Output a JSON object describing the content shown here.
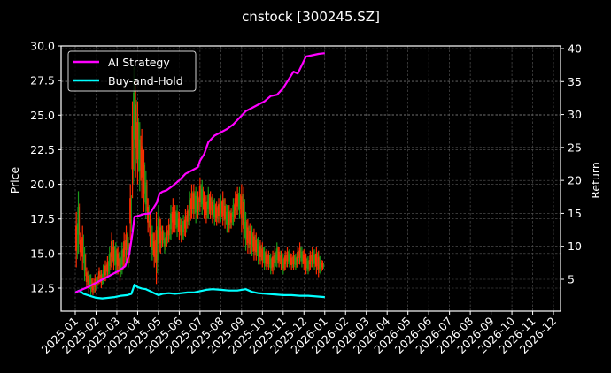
{
  "chart_data": {
    "type": "line",
    "title": "cnstock [300245.SZ]",
    "xlabel": "",
    "ylabel": "Price",
    "y2label": "Return",
    "ylim": [
      10.9,
      30.0
    ],
    "y2lim": [
      1.5,
      40.4
    ],
    "yticks": [
      "12.5",
      "15.0",
      "17.5",
      "20.0",
      "22.5",
      "25.0",
      "27.5",
      "30.0"
    ],
    "y2ticks": [
      "5",
      "10",
      "15",
      "20",
      "25",
      "30",
      "35",
      "40"
    ],
    "xticks": [
      "2025-01",
      "2025-02",
      "2025-03",
      "2025-04",
      "2025-05",
      "2025-06",
      "2025-07",
      "2025-08",
      "2025-09",
      "2025-10",
      "2025-11",
      "2025-12",
      "2026-01",
      "2026-02",
      "2026-03",
      "2026-04",
      "2026-05",
      "2026-06",
      "2026-07",
      "2026-08",
      "2026-09",
      "2026-10",
      "2026-11",
      "2026-12"
    ],
    "grid": true,
    "legend_position": "upper left",
    "legend": [
      "AI Strategy",
      "Buy-and-Hold"
    ],
    "colors": {
      "ai_strategy": "#ff00ff",
      "buy_and_hold": "#00ffff",
      "candle_up": "#ff2a00",
      "candle_down": "#1a9a1a"
    },
    "series": [
      {
        "name": "AI Strategy",
        "axis": "right",
        "x_month": [
          0.0,
          0.3,
          0.6,
          0.9,
          1.2,
          1.5,
          1.8,
          2.1,
          2.4,
          2.6,
          2.75,
          2.85,
          3.0,
          3.3,
          3.6,
          3.9,
          4.05,
          4.2,
          4.4,
          4.7,
          5.0,
          5.3,
          5.6,
          5.9,
          6.0,
          6.2,
          6.4,
          6.7,
          7.0,
          7.3,
          7.6,
          7.9,
          8.2,
          8.5,
          8.8,
          9.1,
          9.4,
          9.7,
          10.0,
          10.3,
          10.5,
          10.7,
          10.9,
          11.1,
          11.4,
          11.7,
          12.0
        ],
        "values": [
          3.0,
          3.4,
          3.8,
          4.3,
          4.8,
          5.3,
          5.8,
          6.3,
          7.0,
          8.8,
          12.0,
          14.5,
          14.6,
          14.9,
          15.0,
          16.5,
          18.0,
          18.3,
          18.5,
          19.2,
          20.0,
          21.0,
          21.5,
          22.0,
          23.0,
          24.0,
          25.8,
          26.8,
          27.3,
          27.8,
          28.5,
          29.5,
          30.5,
          31.0,
          31.5,
          32.0,
          32.8,
          33.0,
          34.0,
          35.5,
          36.5,
          36.2,
          37.5,
          38.8,
          39.0,
          39.2,
          39.3
        ]
      },
      {
        "name": "Buy-and-Hold",
        "axis": "right",
        "x_month": [
          0.0,
          0.2,
          0.4,
          0.6,
          0.8,
          1.0,
          1.3,
          1.6,
          1.9,
          2.2,
          2.5,
          2.7,
          2.85,
          3.0,
          3.2,
          3.4,
          3.6,
          3.8,
          4.0,
          4.2,
          4.5,
          4.8,
          5.1,
          5.4,
          5.7,
          6.0,
          6.3,
          6.6,
          7.0,
          7.4,
          7.8,
          8.2,
          8.5,
          8.8,
          9.2,
          9.6,
          10.0,
          10.4,
          10.8,
          11.2,
          11.6,
          12.0
        ],
        "values": [
          3.0,
          3.3,
          2.8,
          2.6,
          2.4,
          2.2,
          2.1,
          2.2,
          2.3,
          2.5,
          2.6,
          2.8,
          4.2,
          3.8,
          3.6,
          3.5,
          3.2,
          2.9,
          2.6,
          2.8,
          2.9,
          2.8,
          2.9,
          3.0,
          3.0,
          3.2,
          3.4,
          3.5,
          3.4,
          3.3,
          3.3,
          3.5,
          3.1,
          2.9,
          2.8,
          2.7,
          2.6,
          2.6,
          2.5,
          2.5,
          2.4,
          2.3
        ]
      },
      {
        "name": "Price (candles)",
        "axis": "left",
        "x_month": [
          0.05,
          0.15,
          0.25,
          0.35,
          0.45,
          0.55,
          0.65,
          0.75,
          0.85,
          0.95,
          1.05,
          1.15,
          1.25,
          1.35,
          1.45,
          1.55,
          1.65,
          1.75,
          1.85,
          1.95,
          2.05,
          2.15,
          2.25,
          2.35,
          2.45,
          2.55,
          2.65,
          2.75,
          2.82,
          2.9,
          3.0,
          3.1,
          3.2,
          3.3,
          3.4,
          3.5,
          3.6,
          3.7,
          3.8,
          3.9,
          4.0,
          4.1,
          4.2,
          4.3,
          4.4,
          4.5,
          4.6,
          4.7,
          4.8,
          4.9,
          5.0,
          5.1,
          5.2,
          5.3,
          5.4,
          5.5,
          5.6,
          5.7,
          5.8,
          5.9,
          6.0,
          6.1,
          6.2,
          6.3,
          6.4,
          6.5,
          6.6,
          6.7,
          6.8,
          6.9,
          7.0,
          7.1,
          7.2,
          7.3,
          7.4,
          7.5,
          7.6,
          7.7,
          7.8,
          7.9,
          8.0,
          8.1,
          8.2,
          8.3,
          8.4,
          8.5,
          8.6,
          8.7,
          8.8,
          8.9,
          9.0,
          9.1,
          9.2,
          9.3,
          9.4,
          9.5,
          9.6,
          9.7,
          9.8,
          9.9,
          10.0,
          10.1,
          10.2,
          10.3,
          10.4,
          10.5,
          10.6,
          10.7,
          10.8,
          10.9,
          11.0,
          11.1,
          11.2,
          11.3,
          11.4,
          11.5,
          11.6,
          11.7,
          11.8,
          11.9
        ],
        "high": [
          18.0,
          19.5,
          16.5,
          17.0,
          15.5,
          14.0,
          13.8,
          13.5,
          13.2,
          13.5,
          13.6,
          14.0,
          13.8,
          14.2,
          14.5,
          14.8,
          15.5,
          16.5,
          16.0,
          15.8,
          15.5,
          15.2,
          15.8,
          16.5,
          17.0,
          16.2,
          20.0,
          26.0,
          28.5,
          27.5,
          26.0,
          24.5,
          24.0,
          22.5,
          21.0,
          19.0,
          18.0,
          17.0,
          16.5,
          18.0,
          18.5,
          17.5,
          17.0,
          16.5,
          17.0,
          17.5,
          18.5,
          19.0,
          18.5,
          18.5,
          18.0,
          17.5,
          17.8,
          18.2,
          18.5,
          19.5,
          20.0,
          20.0,
          19.8,
          19.5,
          20.5,
          20.3,
          19.5,
          19.2,
          19.8,
          19.5,
          19.3,
          19.0,
          18.8,
          19.0,
          19.2,
          19.5,
          19.0,
          18.5,
          18.5,
          18.3,
          19.0,
          19.5,
          19.8,
          19.8,
          20.0,
          19.8,
          18.0,
          17.5,
          17.2,
          17.0,
          16.8,
          16.5,
          16.2,
          16.0,
          15.8,
          15.5,
          15.3,
          15.2,
          15.0,
          15.2,
          15.5,
          15.8,
          15.5,
          15.2,
          15.0,
          15.2,
          15.5,
          15.3,
          15.0,
          15.2,
          15.0,
          15.5,
          15.8,
          15.5,
          15.3,
          15.0,
          14.8,
          15.2,
          15.5,
          15.3,
          15.5,
          15.2,
          14.8,
          14.5
        ],
        "low": [
          14.0,
          15.0,
          14.5,
          13.8,
          13.0,
          12.5,
          12.2,
          12.0,
          12.0,
          12.2,
          12.5,
          12.8,
          12.5,
          12.8,
          13.0,
          13.2,
          13.5,
          14.0,
          13.8,
          13.5,
          13.5,
          13.0,
          13.5,
          14.0,
          14.5,
          14.0,
          16.0,
          19.0,
          21.0,
          20.5,
          20.0,
          19.5,
          19.0,
          18.0,
          17.5,
          16.5,
          15.5,
          14.5,
          14.0,
          12.8,
          14.5,
          15.0,
          15.5,
          15.0,
          15.5,
          15.8,
          16.0,
          16.5,
          16.5,
          16.2,
          16.0,
          15.8,
          16.0,
          16.2,
          16.8,
          17.0,
          17.5,
          17.5,
          17.2,
          17.5,
          18.0,
          17.8,
          17.5,
          17.2,
          17.5,
          17.5,
          17.2,
          17.0,
          17.0,
          17.2,
          17.3,
          17.0,
          16.8,
          16.5,
          16.5,
          16.8,
          17.0,
          17.5,
          17.8,
          17.5,
          16.5,
          15.5,
          15.2,
          15.0,
          15.0,
          14.8,
          14.5,
          14.5,
          14.2,
          14.2,
          14.0,
          13.8,
          13.8,
          13.8,
          13.5,
          13.5,
          13.8,
          14.0,
          14.0,
          13.8,
          13.5,
          13.8,
          14.0,
          14.0,
          13.8,
          13.8,
          13.8,
          14.0,
          14.2,
          14.0,
          13.8,
          13.5,
          13.5,
          13.8,
          14.0,
          13.8,
          13.5,
          13.3,
          13.5,
          13.8
        ]
      }
    ]
  }
}
